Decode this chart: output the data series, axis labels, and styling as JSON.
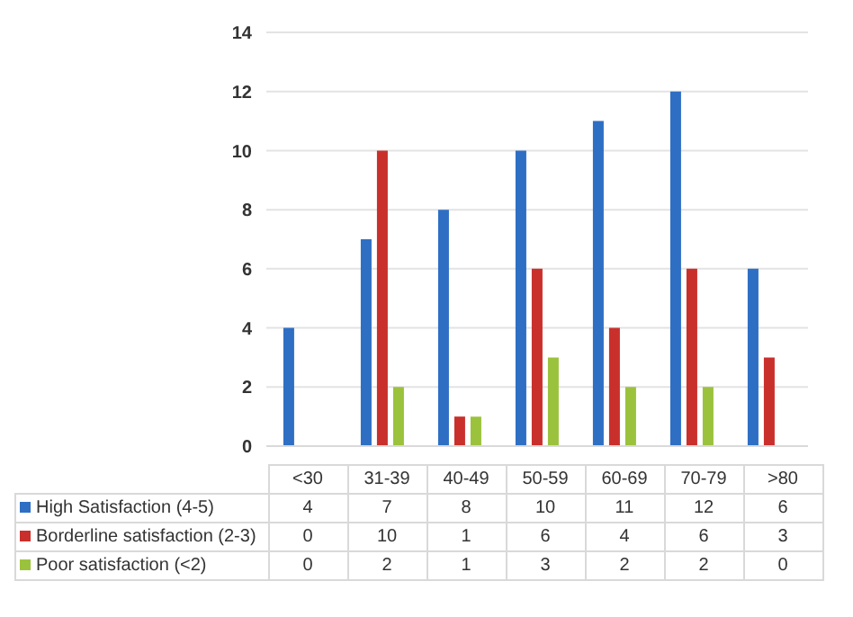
{
  "chart_data": {
    "type": "bar",
    "categories": [
      "<30",
      "31-39",
      "40-49",
      "50-59",
      "60-69",
      "70-79",
      ">80"
    ],
    "series": [
      {
        "name": "High Satisfaction (4-5)",
        "color": "#2e6fc4",
        "values": [
          4,
          7,
          8,
          10,
          11,
          12,
          6
        ]
      },
      {
        "name": "Borderline satisfaction (2-3)",
        "color": "#c9302c",
        "values": [
          0,
          10,
          1,
          6,
          4,
          6,
          3
        ]
      },
      {
        "name": "Poor satisfaction (<2)",
        "color": "#9bc23c",
        "values": [
          0,
          2,
          1,
          3,
          2,
          2,
          0
        ]
      }
    ],
    "ylim": [
      0,
      14
    ],
    "yticks": [
      0,
      2,
      4,
      6,
      8,
      10,
      12,
      14
    ],
    "grid": "y",
    "legend": "bottom",
    "data_labels": true
  }
}
